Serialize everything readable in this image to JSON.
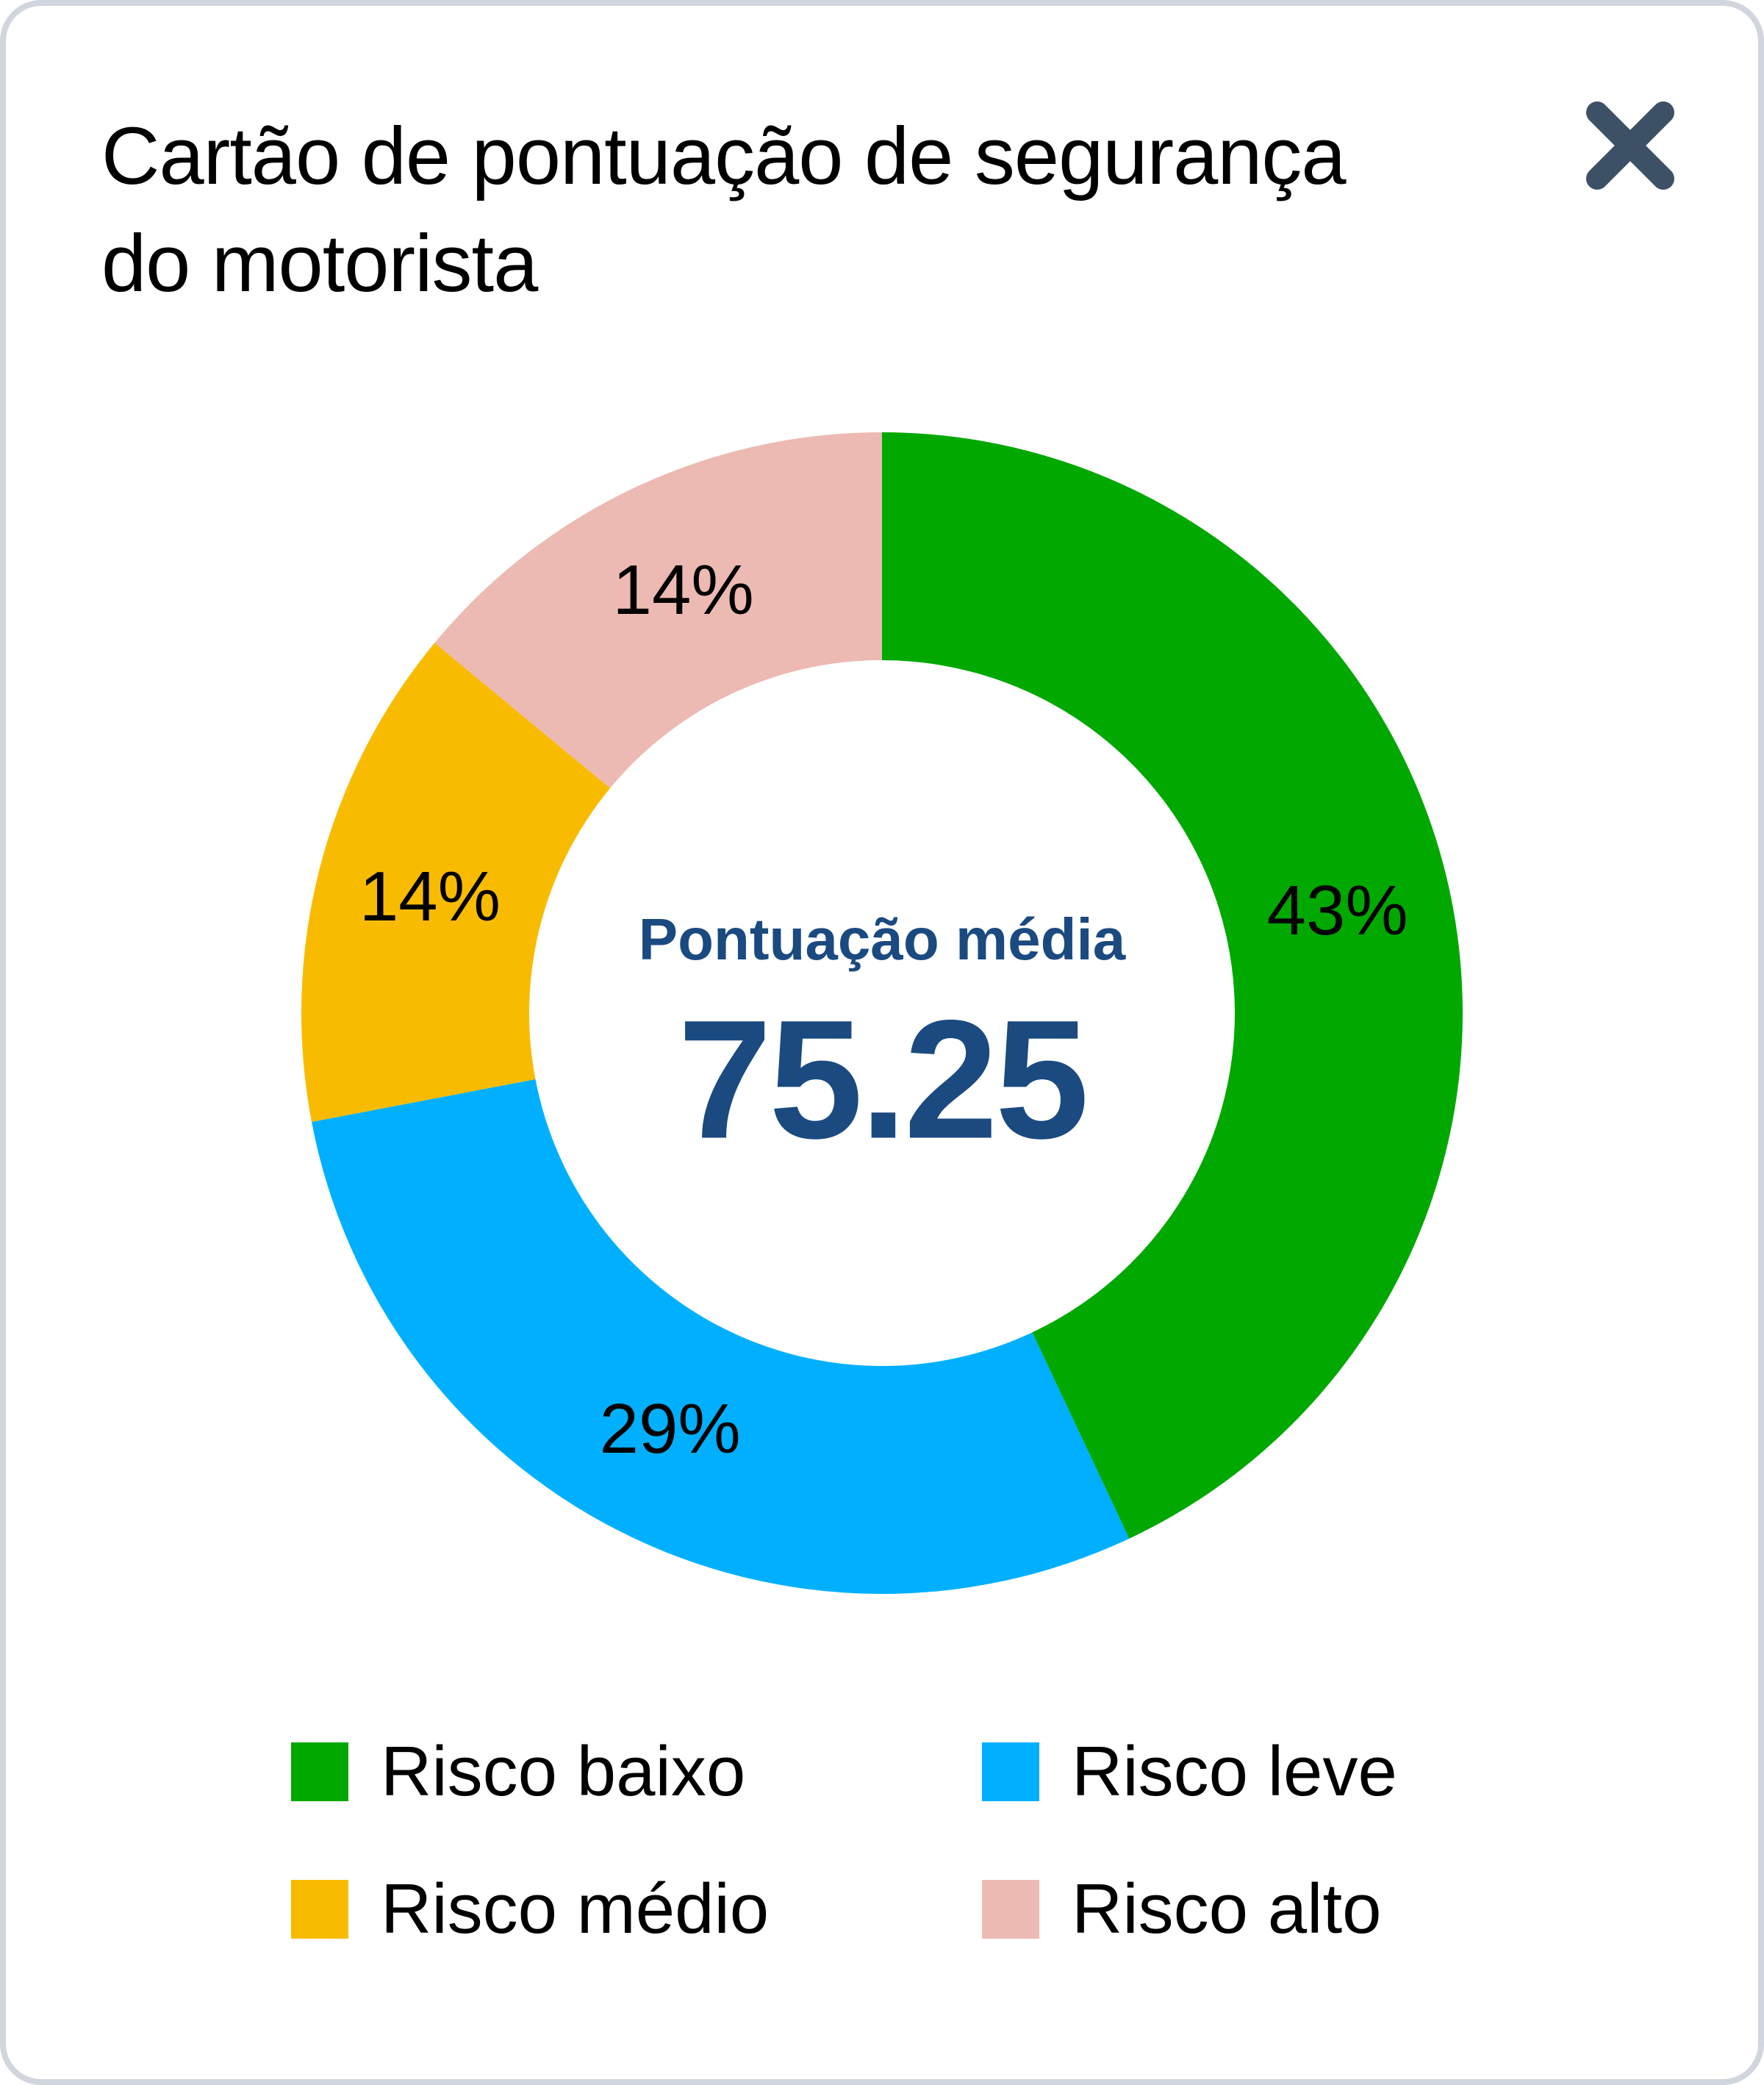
{
  "card": {
    "title": "Cartão de pontuação de segurança do motorista",
    "close_icon": "close-icon"
  },
  "center": {
    "label": "Pontuação média",
    "value": "75.25"
  },
  "colors": {
    "risco_baixo": "#00a800",
    "risco_leve": "#00b0ff",
    "risco_medio": "#f9bb00",
    "risco_alto": "#ecbab2",
    "center_text": "#1a4a80",
    "close_icon": "#3d5166",
    "border": "#d1d5dd"
  },
  "slices": [
    {
      "label": "43%"
    },
    {
      "label": "29%"
    },
    {
      "label": "14%"
    },
    {
      "label": "14%"
    }
  ],
  "legend": [
    {
      "label": "Risco baixo"
    },
    {
      "label": "Risco leve"
    },
    {
      "label": "Risco médio"
    },
    {
      "label": "Risco alto"
    }
  ],
  "chart_data": {
    "type": "pie",
    "subtype": "donut",
    "title": "Cartão de pontuação de segurança do motorista",
    "categories": [
      "Risco baixo",
      "Risco leve",
      "Risco médio",
      "Risco alto"
    ],
    "values": [
      43,
      29,
      14,
      14
    ],
    "value_labels": [
      "43%",
      "29%",
      "14%",
      "14%"
    ],
    "colors": [
      "#00a800",
      "#00b0ff",
      "#f9bb00",
      "#ecbab2"
    ],
    "start_angle": "12 o'clock",
    "direction": "clockwise",
    "center_annotation": {
      "label": "Pontuação média",
      "value": 75.25
    },
    "legend_position": "bottom"
  }
}
